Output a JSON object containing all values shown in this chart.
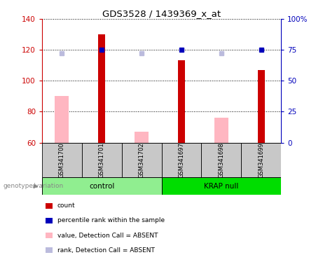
{
  "title": "GDS3528 / 1439369_x_at",
  "samples": [
    "GSM341700",
    "GSM341701",
    "GSM341702",
    "GSM341697",
    "GSM341698",
    "GSM341699"
  ],
  "ylim_left": [
    60,
    140
  ],
  "ylim_right": [
    0,
    100
  ],
  "yticks_left": [
    60,
    80,
    100,
    120,
    140
  ],
  "yticks_right": [
    0,
    25,
    50,
    75,
    100
  ],
  "red_bars": [
    null,
    130,
    null,
    113,
    null,
    107
  ],
  "pink_bars": [
    90,
    null,
    67,
    null,
    76,
    null
  ],
  "blue_squares": [
    null,
    75,
    null,
    75,
    null,
    75
  ],
  "lightblue_squares": [
    72,
    null,
    72,
    null,
    72,
    null
  ],
  "red_color": "#CC0000",
  "pink_color": "#FFB6C1",
  "blue_color": "#0000BB",
  "lightblue_color": "#BBBBDD",
  "gray_bg": "#C8C8C8",
  "green_control": "#90EE90",
  "green_krap": "#00DD00",
  "legend_items": [
    {
      "label": "count",
      "color": "#CC0000"
    },
    {
      "label": "percentile rank within the sample",
      "color": "#0000BB"
    },
    {
      "label": "value, Detection Call = ABSENT",
      "color": "#FFB6C1"
    },
    {
      "label": "rank, Detection Call = ABSENT",
      "color": "#BBBBDD"
    }
  ]
}
